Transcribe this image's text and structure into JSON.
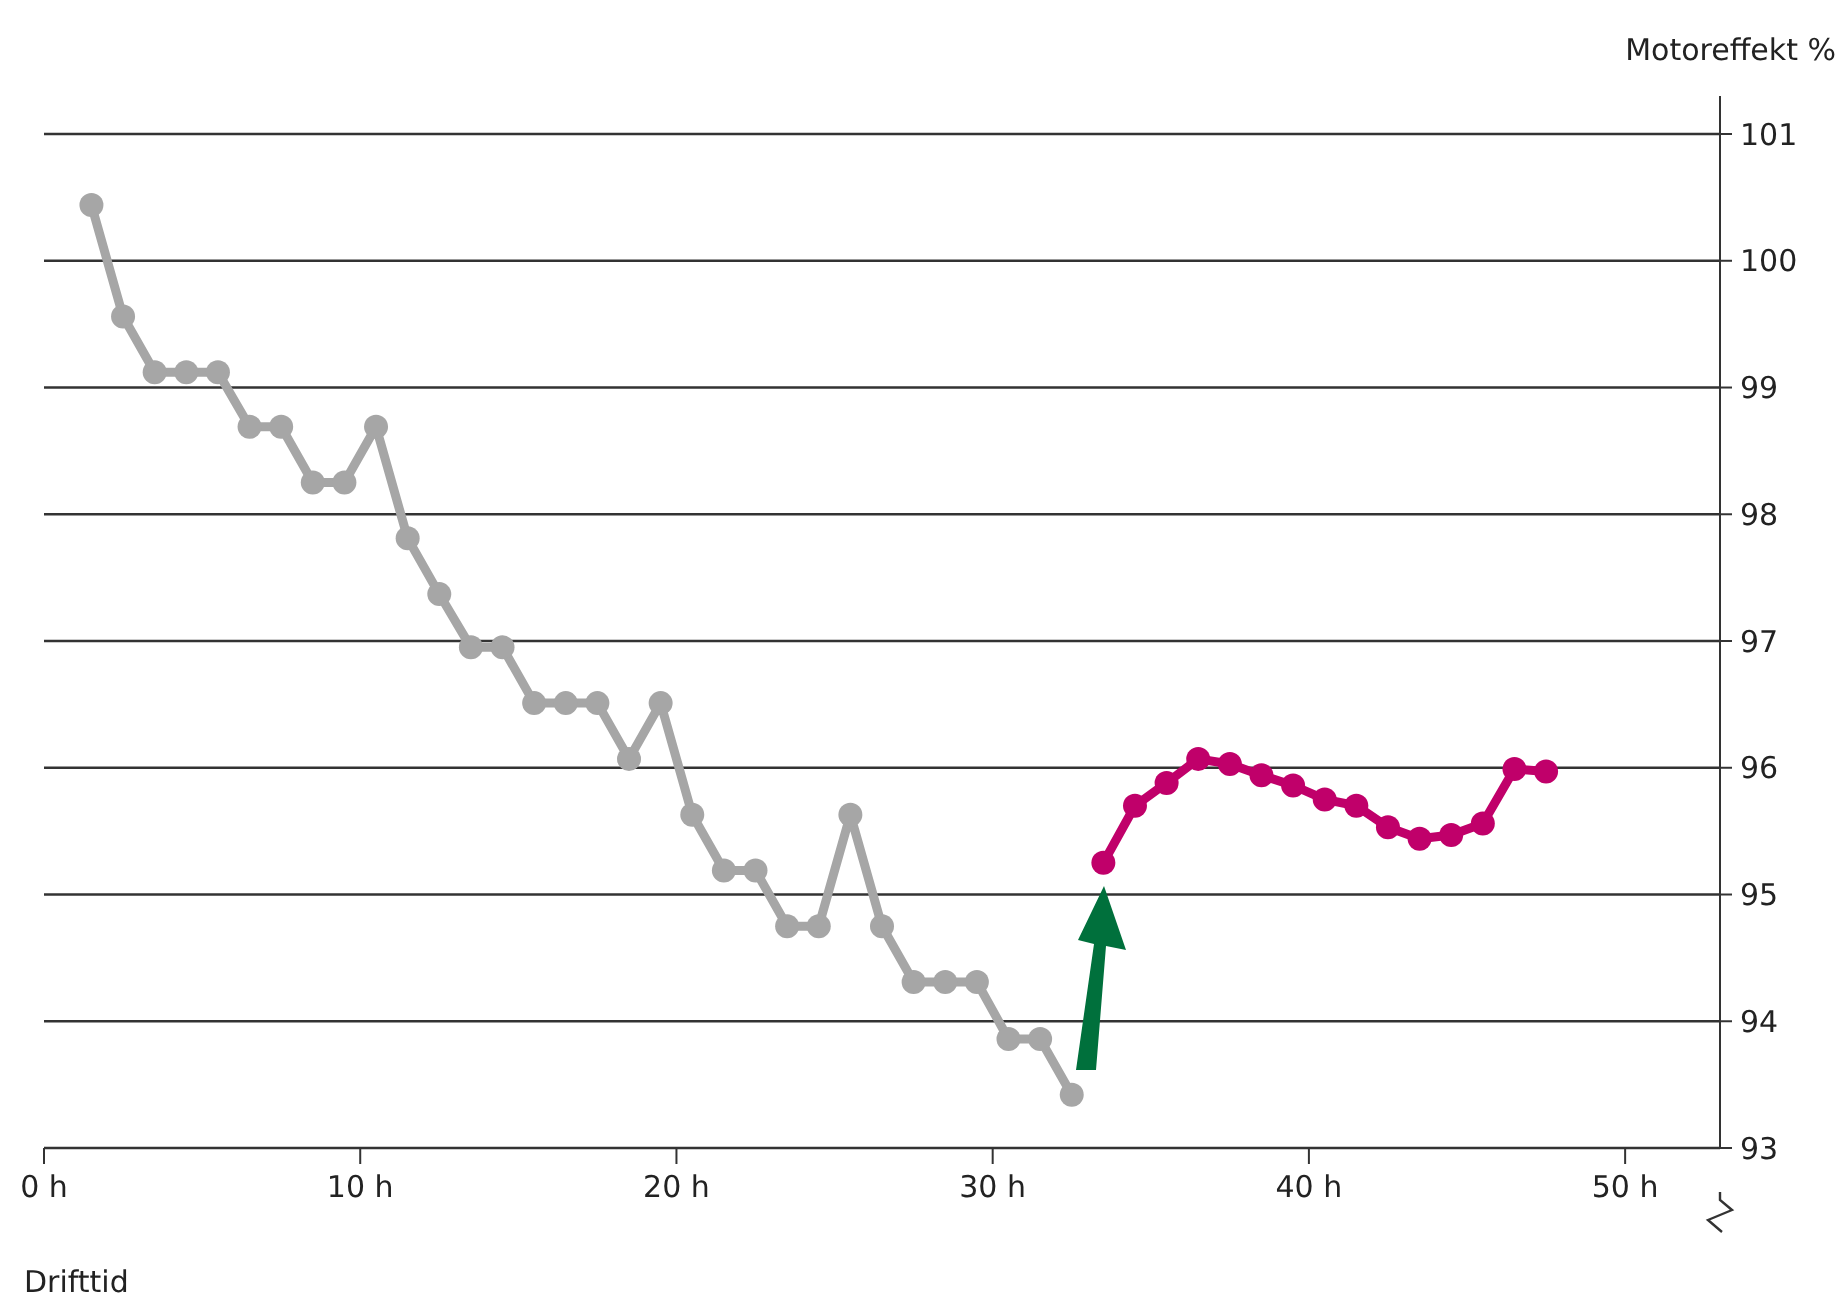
{
  "chart_data": {
    "type": "line",
    "xlabel": "Drifttid",
    "ylabel": "Motoreffekt %",
    "series": [
      {
        "color": "#a6a6a6",
        "x": [
          1.5,
          2.5,
          3.5,
          4.5,
          5.5,
          6.5,
          7.5,
          8.5,
          9.5,
          10.5,
          11.5,
          12.5,
          13.5,
          14.5,
          15.5,
          16.5,
          17.5,
          18.5,
          19.5,
          20.5,
          21.5,
          22.5,
          23.5,
          24.5,
          25.5,
          26.5,
          27.5,
          28.5,
          29.5,
          30.5,
          31.5,
          32.5
        ],
        "values": [
          100.44,
          99.56,
          99.12,
          99.12,
          99.12,
          98.69,
          98.69,
          98.25,
          98.25,
          98.69,
          97.81,
          97.37,
          96.95,
          96.95,
          96.51,
          96.51,
          96.51,
          96.07,
          96.51,
          95.63,
          95.19,
          95.19,
          94.75,
          94.75,
          95.63,
          94.75,
          94.31,
          94.31,
          94.31,
          93.86,
          93.86,
          93.42
        ]
      },
      {
        "color": "#c0006a",
        "x": [
          33.5,
          34.5,
          35.5,
          36.5,
          37.5,
          38.5,
          39.5,
          40.5,
          41.5,
          42.5,
          43.5,
          44.5,
          45.5,
          46.5,
          47.5
        ],
        "values": [
          95.25,
          95.7,
          95.88,
          96.07,
          96.03,
          95.94,
          95.86,
          95.75,
          95.7,
          95.53,
          95.44,
          95.47,
          95.56,
          95.99,
          95.97
        ]
      }
    ],
    "xlim": [
      0,
      53
    ],
    "xticks": [
      {
        "value": 0,
        "label": "0 h"
      },
      {
        "value": 10,
        "label": "10 h"
      },
      {
        "value": 20,
        "label": "20 h"
      },
      {
        "value": 30,
        "label": "30 h"
      },
      {
        "value": 40,
        "label": "40 h"
      },
      {
        "value": 50,
        "label": "50 h"
      }
    ],
    "ylim": [
      93,
      101.3
    ],
    "yticks": [
      93,
      94,
      95,
      96,
      97,
      98,
      99,
      100,
      101
    ],
    "grid": "y",
    "marker": "circle",
    "line_style": "solid"
  }
}
